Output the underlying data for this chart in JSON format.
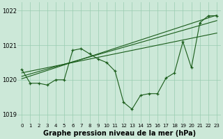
{
  "x_hours": [
    0,
    1,
    2,
    3,
    4,
    5,
    6,
    7,
    8,
    9,
    10,
    11,
    12,
    13,
    14,
    15,
    16,
    17,
    18,
    19,
    20,
    21,
    22,
    23
  ],
  "line_volatile": [
    1020.3,
    1019.9,
    1019.9,
    1019.85,
    1020.0,
    1020.0,
    1020.85,
    1020.9,
    1020.75,
    1020.6,
    1020.5,
    1020.25,
    1019.35,
    1019.15,
    1019.55,
    1019.6,
    1019.6,
    1020.05,
    1020.2,
    1021.1,
    1020.35,
    1021.65,
    1021.85,
    1021.85
  ],
  "line_smooth1": [
    1020.2,
    1020.25,
    1020.3,
    1020.35,
    1020.4,
    1020.45,
    1020.5,
    1020.55,
    1020.6,
    1020.65,
    1020.7,
    1020.75,
    1020.8,
    1020.85,
    1020.9,
    1020.95,
    1021.0,
    1021.05,
    1021.1,
    1021.15,
    1021.2,
    1021.25,
    1021.3,
    1021.35
  ],
  "line_smooth2": [
    1020.1,
    1020.17,
    1020.24,
    1020.31,
    1020.38,
    1020.45,
    1020.52,
    1020.59,
    1020.66,
    1020.73,
    1020.8,
    1020.87,
    1020.94,
    1021.01,
    1021.08,
    1021.15,
    1021.22,
    1021.29,
    1021.36,
    1021.43,
    1021.5,
    1021.57,
    1021.64,
    1021.71
  ],
  "line_smooth3": [
    1020.03,
    1020.11,
    1020.19,
    1020.27,
    1020.35,
    1020.43,
    1020.51,
    1020.59,
    1020.67,
    1020.75,
    1020.83,
    1020.91,
    1020.99,
    1021.07,
    1021.15,
    1021.23,
    1021.31,
    1021.39,
    1021.47,
    1021.55,
    1021.63,
    1021.71,
    1021.79,
    1021.87
  ],
  "bg_color": "#cce8d8",
  "line_color": "#1a5c1a",
  "grid_color": "#99ccb0",
  "ylim": [
    1018.75,
    1022.25
  ],
  "yticks": [
    1019,
    1020,
    1021,
    1022
  ],
  "xlim": [
    -0.5,
    23.5
  ],
  "xlabel": "Graphe pression niveau de la mer (hPa)",
  "xlabel_fontsize": 7,
  "tick_fontsize": 5,
  "ytick_fontsize": 6
}
